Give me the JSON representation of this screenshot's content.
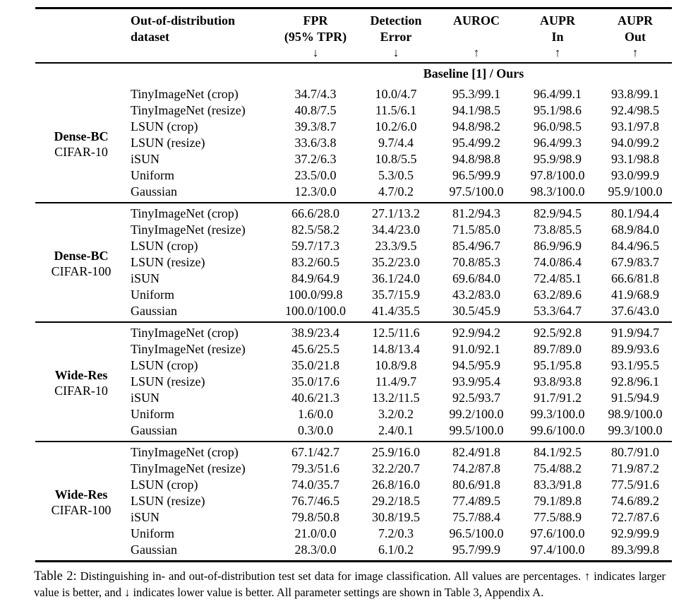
{
  "table": {
    "header": {
      "cols": [
        {
          "line1": "",
          "line2": "",
          "arrow": ""
        },
        {
          "line1": "Out-of-distribution",
          "line2": "dataset",
          "arrow": ""
        },
        {
          "line1": "FPR",
          "line2": "(95% TPR)",
          "arrow": "↓"
        },
        {
          "line1": "Detection",
          "line2": "Error",
          "arrow": "↓"
        },
        {
          "line1": "AUROC",
          "line2": "",
          "arrow": "↑"
        },
        {
          "line1": "AUPR",
          "line2": "In",
          "arrow": "↑"
        },
        {
          "line1": "AUPR",
          "line2": "Out",
          "arrow": "↑"
        }
      ]
    },
    "span_header": "Baseline [1] / Ours",
    "groups": [
      {
        "model": "Dense-BC",
        "id_dataset": "CIFAR-10",
        "rows": [
          {
            "ood": "TinyImageNet (crop)",
            "values": [
              "34.7/4.3",
              "10.0/4.7",
              "95.3/99.1",
              "96.4/99.1",
              "93.8/99.1"
            ]
          },
          {
            "ood": "TinyImageNet (resize)",
            "values": [
              "40.8/7.5",
              "11.5/6.1",
              "94.1/98.5",
              "95.1/98.6",
              "92.4/98.5"
            ]
          },
          {
            "ood": "LSUN (crop)",
            "values": [
              "39.3/8.7",
              "10.2/6.0",
              "94.8/98.2",
              "96.0/98.5",
              "93.1/97.8"
            ]
          },
          {
            "ood": "LSUN (resize)",
            "values": [
              "33.6/3.8",
              "9.7/4.4",
              "95.4/99.2",
              "96.4/99.3",
              "94.0/99.2"
            ]
          },
          {
            "ood": "iSUN",
            "values": [
              "37.2/6.3",
              "10.8/5.5",
              "94.8/98.8",
              "95.9/98.9",
              "93.1/98.8"
            ]
          },
          {
            "ood": "Uniform",
            "values": [
              "23.5/0.0",
              "5.3/0.5",
              "96.5/99.9",
              "97.8/100.0",
              "93.0/99.9"
            ]
          },
          {
            "ood": "Gaussian",
            "values": [
              "12.3/0.0",
              "4.7/0.2",
              "97.5/100.0",
              "98.3/100.0",
              "95.9/100.0"
            ]
          }
        ]
      },
      {
        "model": "Dense-BC",
        "id_dataset": "CIFAR-100",
        "rows": [
          {
            "ood": "TinyImageNet (crop)",
            "values": [
              "66.6/28.0",
              "27.1/13.2",
              "81.2/94.3",
              "82.9/94.5",
              "80.1/94.4"
            ]
          },
          {
            "ood": "TinyImageNet (resize)",
            "values": [
              "82.5/58.2",
              "34.4/23.0",
              "71.5/85.0",
              "73.8/85.5",
              "68.9/84.0"
            ]
          },
          {
            "ood": "LSUN (crop)",
            "values": [
              "59.7/17.3",
              "23.3/9.5",
              "85.4/96.7",
              "86.9/96.9",
              "84.4/96.5"
            ]
          },
          {
            "ood": "LSUN (resize)",
            "values": [
              "83.2/60.5",
              "35.2/23.0",
              "70.8/85.3",
              "74.0/86.4",
              "67.9/83.7"
            ]
          },
          {
            "ood": "iSUN",
            "values": [
              "84.9/64.9",
              "36.1/24.0",
              "69.6/84.0",
              "72.4/85.1",
              "66.6/81.8"
            ]
          },
          {
            "ood": "Uniform",
            "values": [
              "100.0/99.8",
              "35.7/15.9",
              "43.2/83.0",
              "63.2/89.6",
              "41.9/68.9"
            ]
          },
          {
            "ood": "Gaussian",
            "values": [
              "100.0/100.0",
              "41.4/35.5",
              "30.5/45.9",
              "53.3/64.7",
              "37.6/43.0"
            ]
          }
        ]
      },
      {
        "model": "Wide-Res",
        "id_dataset": "CIFAR-10",
        "rows": [
          {
            "ood": "TinyImageNet (crop)",
            "values": [
              "38.9/23.4",
              "12.5/11.6",
              "92.9/94.2",
              "92.5/92.8",
              "91.9/94.7"
            ]
          },
          {
            "ood": "TinyImageNet (resize)",
            "values": [
              "45.6/25.5",
              "14.8/13.4",
              "91.0/92.1",
              "89.7/89.0",
              "89.9/93.6"
            ]
          },
          {
            "ood": "LSUN (crop)",
            "values": [
              "35.0/21.8",
              "10.8/9.8",
              "94.5/95.9",
              "95.1/95.8",
              "93.1/95.5"
            ]
          },
          {
            "ood": "LSUN (resize)",
            "values": [
              "35.0/17.6",
              "11.4/9.7",
              "93.9/95.4",
              "93.8/93.8",
              "92.8/96.1"
            ]
          },
          {
            "ood": "iSUN",
            "values": [
              "40.6/21.3",
              "13.2/11.5",
              "92.5/93.7",
              "91.7/91.2",
              "91.5/94.9"
            ]
          },
          {
            "ood": "Uniform",
            "values": [
              "1.6/0.0",
              "3.2/0.2",
              "99.2/100.0",
              "99.3/100.0",
              "98.9/100.0"
            ]
          },
          {
            "ood": "Gaussian",
            "values": [
              "0.3/0.0",
              "2.4/0.1",
              "99.5/100.0",
              "99.6/100.0",
              "99.3/100.0"
            ]
          }
        ]
      },
      {
        "model": "Wide-Res",
        "id_dataset": "CIFAR-100",
        "rows": [
          {
            "ood": "TinyImageNet (crop)",
            "values": [
              "67.1/42.7",
              "25.9/16.0",
              "82.4/91.8",
              "84.1/92.5",
              "80.7/91.0"
            ]
          },
          {
            "ood": "TinyImageNet (resize)",
            "values": [
              "79.3/51.6",
              "32.2/20.7",
              "74.2/87.8",
              "75.4/88.2",
              "71.9/87.2"
            ]
          },
          {
            "ood": "LSUN (crop)",
            "values": [
              "74.0/35.7",
              "26.8/16.0",
              "80.6/91.8",
              "83.3/91.8",
              "77.5/91.6"
            ]
          },
          {
            "ood": "LSUN (resize)",
            "values": [
              "76.7/46.5",
              "29.2/18.5",
              "77.4/89.5",
              "79.1/89.8",
              "74.6/89.2"
            ]
          },
          {
            "ood": "iSUN",
            "values": [
              "79.8/50.8",
              "30.8/19.5",
              "75.7/88.4",
              "77.5/88.9",
              "72.7/87.6"
            ]
          },
          {
            "ood": "Uniform",
            "values": [
              "21.0/0.0",
              "7.2/0.3",
              "96.5/100.0",
              "97.6/100.0",
              "92.9/99.9"
            ]
          },
          {
            "ood": "Gaussian",
            "values": [
              "28.3/0.0",
              "6.1/0.2",
              "95.7/99.9",
              "97.4/100.0",
              "89.3/99.8"
            ]
          }
        ]
      }
    ]
  },
  "caption": {
    "label": "Table 2:",
    "text": "Distinguishing in- and out-of-distribution test set data for image classification. All values are percentages. ↑ indicates larger value is better, and ↓ indicates lower value is better. All parameter settings are shown in Table 3, Appendix A."
  }
}
